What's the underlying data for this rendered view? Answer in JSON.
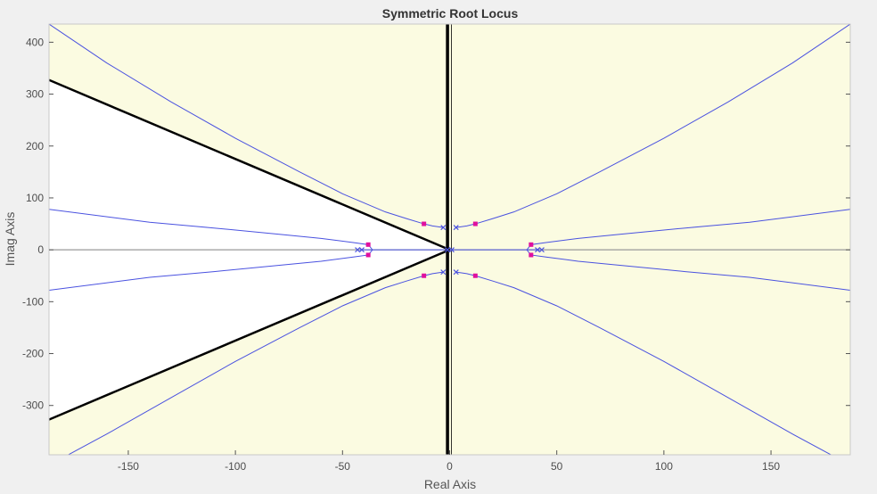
{
  "chart_data": {
    "type": "line",
    "title": "Symmetric Root Locus",
    "xlabel": "Real Axis",
    "ylabel": "Imag Axis",
    "xlim": [
      -187,
      187
    ],
    "ylim": [
      -395,
      435
    ],
    "x_ticks": [
      -150,
      -100,
      -50,
      0,
      50,
      100,
      150
    ],
    "x_tick_labels": [
      "-150",
      "-100",
      "-50",
      "0",
      "50",
      "100",
      "150"
    ],
    "y_ticks": [
      400,
      300,
      200,
      100,
      0,
      -100,
      -200,
      -300
    ],
    "y_tick_labels": [
      "400",
      "300",
      "200",
      "100",
      "0",
      "-100",
      "-200",
      "-300"
    ],
    "grid": false,
    "colors": {
      "figure_bg": "#f0f0f0",
      "plot_bg": "#fbfbe1",
      "stable_region": "#ffffff",
      "locus": "#4a52e0",
      "marker": "#e0109e",
      "boundary": "#000000",
      "axis_line": "#999999"
    },
    "boundary_lines": {
      "damping_line_slope": 1.75,
      "vertical_x": -1
    },
    "poles": [
      [
        -41,
        0
      ],
      [
        -43,
        0
      ],
      [
        -3,
        43
      ],
      [
        -3,
        -43
      ],
      [
        -1,
        0
      ],
      [
        1,
        0
      ],
      [
        3,
        43
      ],
      [
        3,
        -43
      ],
      [
        41,
        0
      ],
      [
        43,
        0
      ]
    ],
    "selected_roots": [
      [
        -12,
        50
      ],
      [
        -12,
        -50
      ],
      [
        -38,
        10
      ],
      [
        -38,
        -10
      ],
      [
        12,
        50
      ],
      [
        12,
        -50
      ],
      [
        38,
        10
      ],
      [
        38,
        -10
      ]
    ],
    "series": [
      {
        "x": [
          -3,
          -8,
          -12,
          -20,
          -30,
          -50,
          -70,
          -100,
          -130,
          -160,
          -187
        ],
        "y": [
          43,
          46,
          50,
          60,
          73,
          108,
          150,
          215,
          285,
          360,
          435
        ]
      },
      {
        "x": [
          -3,
          -8,
          -12,
          -20,
          -30,
          -50,
          -70,
          -100,
          -130,
          -160,
          -187
        ],
        "y": [
          -43,
          -46,
          -50,
          -60,
          -73,
          -108,
          -150,
          -215,
          -285,
          -355,
          -415
        ]
      },
      {
        "x": [
          3,
          8,
          12,
          20,
          30,
          50,
          70,
          100,
          130,
          160,
          187
        ],
        "y": [
          43,
          46,
          50,
          60,
          73,
          108,
          150,
          215,
          285,
          360,
          435
        ]
      },
      {
        "x": [
          3,
          8,
          12,
          20,
          30,
          50,
          70,
          100,
          130,
          160,
          187
        ],
        "y": [
          -43,
          -46,
          -50,
          -60,
          -73,
          -108,
          -150,
          -215,
          -285,
          -355,
          -415
        ]
      },
      {
        "x": [
          -42,
          -40,
          -38,
          -34,
          -30,
          -22,
          -15,
          -8,
          -1
        ],
        "y": [
          0,
          0,
          0,
          0,
          0,
          0,
          0,
          0,
          0
        ]
      },
      {
        "x": [
          1,
          8,
          15,
          22,
          30,
          34,
          38,
          40,
          42
        ],
        "y": [
          0,
          0,
          0,
          0,
          0,
          0,
          0,
          0,
          0
        ]
      },
      {
        "x": [
          -36,
          -38,
          -45,
          -60,
          -80,
          -110,
          -140,
          -187
        ],
        "y": [
          0,
          10,
          14,
          22,
          30,
          42,
          53,
          78
        ]
      },
      {
        "x": [
          -36,
          -38,
          -45,
          -60,
          -80,
          -110,
          -140,
          -187
        ],
        "y": [
          0,
          -10,
          -14,
          -22,
          -30,
          -42,
          -53,
          -78
        ]
      },
      {
        "x": [
          36,
          38,
          45,
          60,
          80,
          110,
          140,
          187
        ],
        "y": [
          0,
          10,
          14,
          22,
          30,
          42,
          53,
          78
        ]
      },
      {
        "x": [
          36,
          38,
          45,
          60,
          80,
          110,
          140,
          187
        ],
        "y": [
          0,
          -10,
          -14,
          -22,
          -30,
          -42,
          -53,
          -78
        ]
      }
    ]
  }
}
